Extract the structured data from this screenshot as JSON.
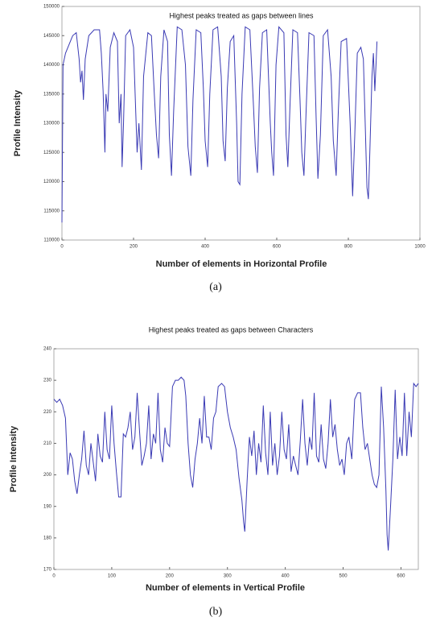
{
  "chart_data": [
    {
      "type": "line",
      "title": "Highest peaks treated as gaps between lines",
      "xlabel": "Number of elements in Horizontal Profile",
      "ylabel": "Profile Intensity",
      "caption": "(a)",
      "color": "#3a3ab4",
      "xlim": [
        0,
        1000
      ],
      "xticks": [
        0,
        200,
        400,
        600,
        800,
        1000
      ],
      "ylim": [
        110000,
        150000
      ],
      "yticks": [
        110000,
        115000,
        120000,
        125000,
        130000,
        135000,
        140000,
        145000,
        150000
      ],
      "x": [
        0,
        3,
        10,
        20,
        30,
        40,
        48,
        52,
        56,
        60,
        65,
        75,
        90,
        105,
        110,
        115,
        120,
        123,
        128,
        135,
        145,
        155,
        160,
        165,
        168,
        172,
        178,
        190,
        200,
        210,
        215,
        222,
        228,
        240,
        250,
        258,
        264,
        270,
        276,
        285,
        295,
        300,
        306,
        312,
        322,
        335,
        345,
        352,
        360,
        366,
        375,
        388,
        395,
        400,
        407,
        413,
        422,
        435,
        445,
        450,
        456,
        462,
        470,
        480,
        488,
        492,
        497,
        503,
        512,
        525,
        535,
        540,
        546,
        552,
        560,
        572,
        582,
        586,
        591,
        598,
        606,
        620,
        626,
        631,
        637,
        645,
        658,
        665,
        670,
        676,
        682,
        690,
        704,
        710,
        715,
        722,
        730,
        742,
        752,
        758,
        766,
        772,
        780,
        795,
        805,
        812,
        818,
        825,
        835,
        842,
        848,
        852,
        856,
        860,
        866,
        870,
        874,
        878,
        880
      ],
      "values": [
        113000,
        140000,
        142000,
        143500,
        145000,
        145500,
        141000,
        137000,
        139000,
        134000,
        141000,
        145000,
        146000,
        146000,
        142000,
        135500,
        125000,
        135000,
        132000,
        143000,
        145500,
        144000,
        130000,
        135000,
        122500,
        130000,
        145000,
        146000,
        143000,
        125000,
        130000,
        122000,
        138000,
        145500,
        145000,
        135000,
        128000,
        124000,
        138000,
        146000,
        144000,
        128000,
        121000,
        132000,
        146500,
        146000,
        140000,
        126000,
        121000,
        134000,
        146000,
        145500,
        136000,
        127000,
        122500,
        135000,
        146000,
        146500,
        138000,
        127000,
        123500,
        136000,
        144000,
        145000,
        130000,
        120000,
        119500,
        135000,
        146500,
        146000,
        133000,
        126000,
        121500,
        136000,
        145500,
        146000,
        130000,
        125000,
        121000,
        140000,
        146500,
        145500,
        128000,
        122500,
        133000,
        146000,
        145500,
        134000,
        125000,
        121000,
        132000,
        145500,
        145000,
        131000,
        120500,
        128000,
        145000,
        146000,
        138000,
        127000,
        121000,
        132000,
        144000,
        144500,
        130000,
        117500,
        128000,
        142000,
        143000,
        141000,
        128000,
        119000,
        117000,
        125000,
        138000,
        142000,
        135500,
        141000,
        144000
      ]
    },
    {
      "type": "line",
      "title": "Highest peaks treated as gaps between Characters",
      "xlabel": "Number of elements in Vertical Profile",
      "ylabel": "Profile Intensity",
      "caption": "(b)",
      "color": "#3a3ab4",
      "xlim": [
        0,
        630
      ],
      "xticks": [
        0,
        100,
        200,
        300,
        400,
        500,
        600
      ],
      "ylim": [
        170,
        240
      ],
      "yticks": [
        170,
        180,
        190,
        200,
        210,
        220,
        230,
        240
      ],
      "x": [
        0,
        5,
        10,
        15,
        20,
        24,
        28,
        32,
        36,
        40,
        44,
        48,
        52,
        56,
        60,
        64,
        68,
        72,
        76,
        80,
        84,
        88,
        92,
        96,
        100,
        104,
        108,
        112,
        116,
        120,
        124,
        128,
        132,
        136,
        140,
        144,
        148,
        152,
        156,
        160,
        164,
        168,
        172,
        176,
        180,
        184,
        188,
        192,
        196,
        200,
        205,
        210,
        215,
        220,
        225,
        228,
        232,
        236,
        240,
        244,
        248,
        252,
        256,
        260,
        264,
        268,
        272,
        276,
        280,
        284,
        290,
        295,
        300,
        305,
        310,
        315,
        320,
        325,
        328,
        330,
        334,
        338,
        342,
        346,
        350,
        354,
        358,
        362,
        366,
        370,
        374,
        378,
        382,
        386,
        390,
        394,
        398,
        402,
        406,
        410,
        414,
        418,
        422,
        426,
        430,
        434,
        438,
        442,
        446,
        450,
        454,
        458,
        462,
        466,
        470,
        474,
        478,
        482,
        486,
        490,
        494,
        498,
        502,
        506,
        510,
        515,
        520,
        525,
        530,
        534,
        538,
        542,
        546,
        550,
        554,
        558,
        562,
        566,
        570,
        574,
        576,
        578,
        582,
        586,
        590,
        594,
        598,
        602,
        606,
        610,
        614,
        618,
        622,
        626,
        630
      ],
      "values": [
        224,
        223,
        224,
        222,
        218,
        200,
        207,
        205,
        198,
        194,
        200,
        205,
        214,
        203,
        200,
        210,
        204,
        198,
        213,
        206,
        204,
        220,
        208,
        205,
        222,
        210,
        201,
        193,
        193,
        213,
        212,
        215,
        220,
        208,
        212,
        226,
        214,
        203,
        206,
        210,
        222,
        205,
        213,
        210,
        226,
        208,
        204,
        215,
        210,
        209,
        228,
        230,
        230,
        231,
        230,
        225,
        210,
        200,
        196,
        205,
        210,
        218,
        210,
        225,
        212,
        212,
        208,
        218,
        220,
        228,
        229,
        228,
        220,
        215,
        212,
        208,
        199,
        192,
        185,
        182,
        198,
        212,
        206,
        214,
        200,
        210,
        204,
        222,
        207,
        200,
        220,
        203,
        210,
        200,
        206,
        220,
        208,
        205,
        216,
        201,
        206,
        203,
        200,
        211,
        224,
        210,
        203,
        212,
        208,
        226,
        206,
        204,
        216,
        205,
        202,
        210,
        224,
        212,
        216,
        208,
        203,
        205,
        200,
        210,
        212,
        205,
        224,
        226,
        226,
        215,
        208,
        210,
        205,
        200,
        197,
        196,
        200,
        228,
        215,
        195,
        181,
        176,
        190,
        205,
        227,
        205,
        212,
        206,
        226,
        206,
        220,
        212,
        229,
        228,
        229
      ]
    }
  ]
}
